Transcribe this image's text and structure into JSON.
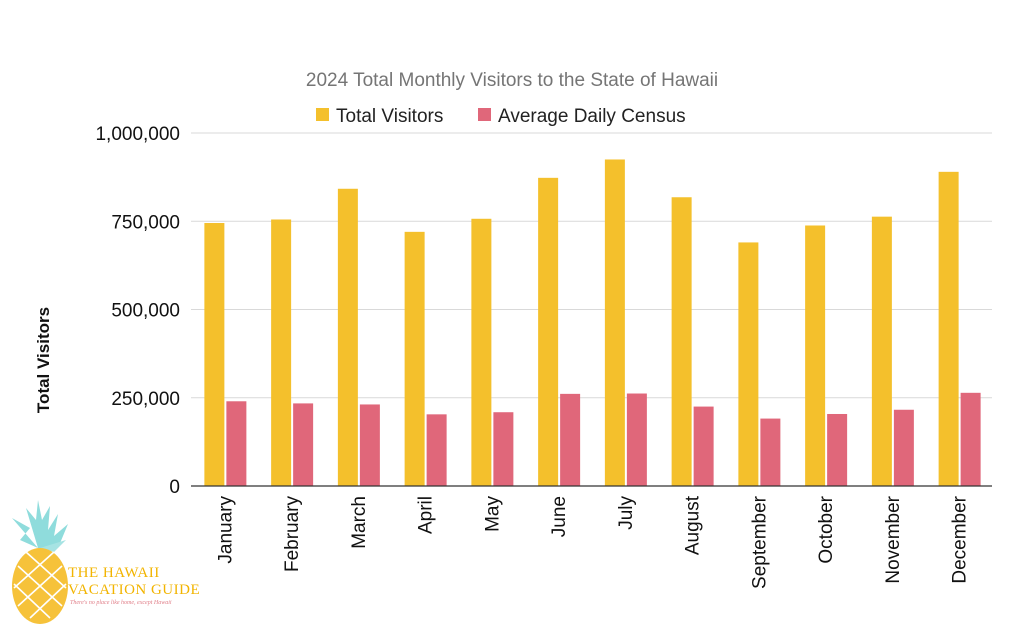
{
  "chart_data": {
    "type": "bar",
    "title": "2024 Total Monthly Visitors to the State of Hawaii",
    "xlabel": "",
    "ylabel": "Total Visitors",
    "ylim": [
      0,
      1000000
    ],
    "yticks": [
      0,
      250000,
      500000,
      750000,
      1000000
    ],
    "ytick_labels": [
      "0",
      "250,000",
      "500,000",
      "750,000",
      "1,000,000"
    ],
    "grid": true,
    "legend_position": "top",
    "categories": [
      "January",
      "February",
      "March",
      "April",
      "May",
      "June",
      "July",
      "August",
      "September",
      "October",
      "November",
      "December"
    ],
    "series": [
      {
        "name": "Total Visitors",
        "color": "#f4c02c",
        "values": [
          745000,
          755000,
          842000,
          720000,
          757000,
          873000,
          925000,
          818000,
          690000,
          738000,
          763000,
          890000
        ]
      },
      {
        "name": "Average Daily Census",
        "color": "#e0677a",
        "values": [
          240000,
          234000,
          231000,
          203000,
          209000,
          261000,
          262000,
          225000,
          191000,
          204000,
          216000,
          264000
        ]
      }
    ]
  },
  "logo": {
    "line1": "THE HAWAII",
    "line2": "VACATION GUIDE",
    "tagline": "There's no place like home, except Hawaii"
  }
}
